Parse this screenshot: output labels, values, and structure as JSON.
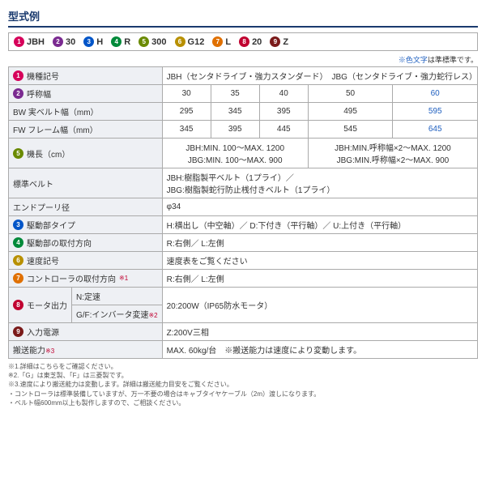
{
  "title": "型式例",
  "legend": [
    {
      "n": "1",
      "color": "#d6005a",
      "label": "JBH"
    },
    {
      "n": "2",
      "color": "#7a2a90",
      "label": "30"
    },
    {
      "n": "3",
      "color": "#0055c8",
      "label": "H"
    },
    {
      "n": "4",
      "color": "#008a3a",
      "label": "R"
    },
    {
      "n": "5",
      "color": "#6a8a00",
      "label": "300"
    },
    {
      "n": "6",
      "color": "#b89000",
      "label": "G12"
    },
    {
      "n": "7",
      "color": "#e07000",
      "label": "L"
    },
    {
      "n": "8",
      "color": "#c00030",
      "label": "20"
    },
    {
      "n": "9",
      "color": "#7a1a1a",
      "label": "Z"
    }
  ],
  "note_blue": "※色文字",
  "note_rest": "は準標準です。",
  "rows": {
    "r1_label": "機種記号",
    "r1_val": "JBH（センタドライブ・強力スタンダード）　JBG（センタドライブ・強力蛇行レス）",
    "r2_label": "呼称幅",
    "r2_vals": [
      "30",
      "35",
      "40",
      "50",
      "60"
    ],
    "r3_label": "BW 実ベルト幅（mm）",
    "r3_vals": [
      "295",
      "345",
      "395",
      "495",
      "595"
    ],
    "r4_label": "FW フレーム幅（mm）",
    "r4_vals": [
      "345",
      "395",
      "445",
      "545",
      "645"
    ],
    "r5_label": "機長（cm）",
    "r5_a": "JBH:MIN. 100〜MAX. 1200\nJBG:MIN. 100〜MAX. 900",
    "r5_b": "JBH:MIN.呼称幅×2〜MAX. 1200\nJBG:MIN.呼称幅×2〜MAX. 900",
    "r6_label": "標準ベルト",
    "r6_val": "JBH:樹脂製平ベルト（1プライ）／\nJBG:樹脂製蛇行防止桟付きベルト（1プライ）",
    "r7_label": "エンドプーリ径",
    "r7_val": "φ34",
    "r8_label": "駆動部タイプ",
    "r8_val": "H:横出し（中空軸）／ D:下付き（平行軸）／ U:上付き（平行軸）",
    "r9_label": "駆動部の取付方向",
    "r9_val": "R:右側／ L:左側",
    "r10_label": "速度記号",
    "r10_val": "速度表をご覧ください",
    "r11_label": "コントローラの取付方向",
    "r11_note": "※1",
    "r11_val": "R:右側／ L:左側",
    "r12_label": "モータ出力",
    "r12_sub1": "N:定速",
    "r12_sub2": "G/F:インバータ変速",
    "r12_sub2_note": "※2",
    "r12_val": "20:200W（IP65防水モータ）",
    "r13_label": "入力電源",
    "r13_val": "Z:200V三相",
    "r14_label": "搬送能力",
    "r14_note": "※3",
    "r14_val": "MAX. 60kg/台　※搬送能力は速度により変動します。"
  },
  "footnotes": [
    "※1.詳細はこちらをご確認ください。",
    "※2.「G」は東芝製、「F」は三菱製です。",
    "※3.速度により搬送能力は変動します。詳細は搬送能力目安をご覧ください。",
    "・コントローラは標準装備していますが、万一不要の場合はキャブタイヤケーブル（2m）渡しになります。",
    "・ベルト幅600mm以上も製作しますので、ご相談ください。"
  ]
}
